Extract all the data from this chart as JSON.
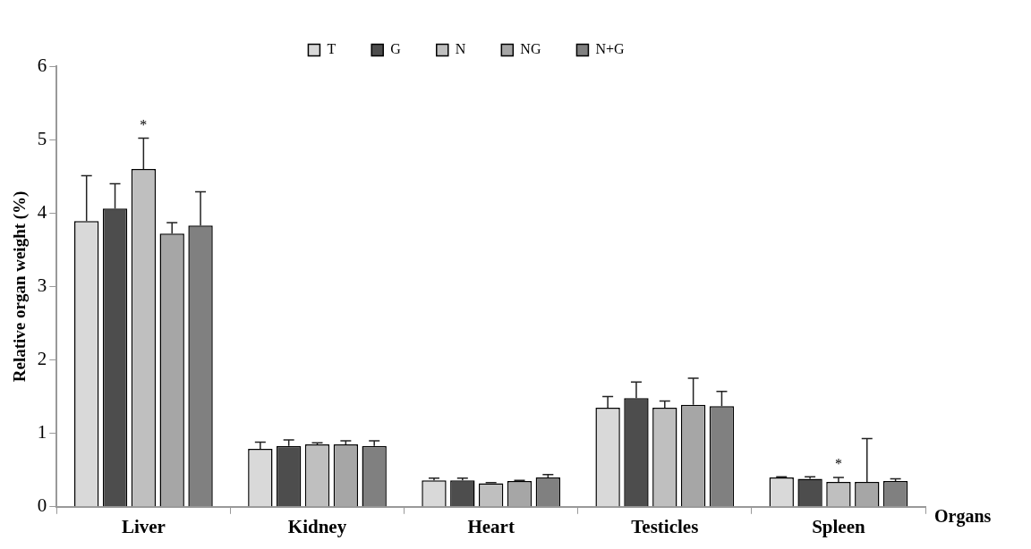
{
  "chart_data": {
    "type": "bar",
    "ylabel": "Relative organ weight (%)",
    "xlabel": "Organs",
    "categories": [
      "Liver",
      "Kidney",
      "Heart",
      "Testicles",
      "Spleen"
    ],
    "series": [
      {
        "name": "T",
        "color": "#d9d9d9",
        "values": [
          3.89,
          0.79,
          0.36,
          1.35,
          0.4
        ],
        "errors": [
          [
            3.89,
            4.51
          ],
          [
            0.79,
            0.88
          ],
          [
            0.36,
            0.39
          ],
          [
            1.35,
            1.5
          ],
          [
            0.4,
            0.41
          ]
        ]
      },
      {
        "name": "G",
        "color": "#4d4d4d",
        "values": [
          4.06,
          0.83,
          0.36,
          1.48,
          0.38
        ],
        "errors": [
          [
            4.06,
            4.4
          ],
          [
            0.83,
            0.91
          ],
          [
            0.36,
            0.39
          ],
          [
            1.48,
            1.7
          ],
          [
            0.38,
            0.41
          ]
        ]
      },
      {
        "name": "N",
        "color": "#bfbfbf",
        "values": [
          4.6,
          0.85,
          0.32,
          1.35,
          0.34
        ],
        "errors": [
          [
            4.6,
            5.02
          ],
          [
            0.85,
            0.87
          ],
          [
            0.32,
            0.33
          ],
          [
            1.35,
            1.44
          ],
          [
            0.34,
            0.4
          ]
        ]
      },
      {
        "name": "NG",
        "color": "#a6a6a6",
        "values": [
          3.72,
          0.85,
          0.35,
          1.39,
          0.34
        ],
        "errors": [
          [
            3.72,
            3.87
          ],
          [
            0.85,
            0.9
          ],
          [
            0.35,
            0.36
          ],
          [
            1.39,
            1.75
          ],
          [
            0.34,
            0.93
          ]
        ]
      },
      {
        "name": "N+G",
        "color": "#808080",
        "values": [
          3.83,
          0.83,
          0.4,
          1.37,
          0.35
        ],
        "errors": [
          [
            3.83,
            4.29
          ],
          [
            0.83,
            0.9
          ],
          [
            0.4,
            0.44
          ],
          [
            1.37,
            1.57
          ],
          [
            0.35,
            0.38
          ]
        ]
      }
    ],
    "ylim": [
      0,
      6
    ],
    "yticks": [
      0,
      1,
      2,
      3,
      4,
      5,
      6
    ],
    "grid": false,
    "legend": "top",
    "annotations": [
      {
        "text": "*",
        "x": "Liver",
        "y": 5.02
      },
      {
        "text": "*",
        "x": "Spleen",
        "y": 0.4
      }
    ]
  }
}
